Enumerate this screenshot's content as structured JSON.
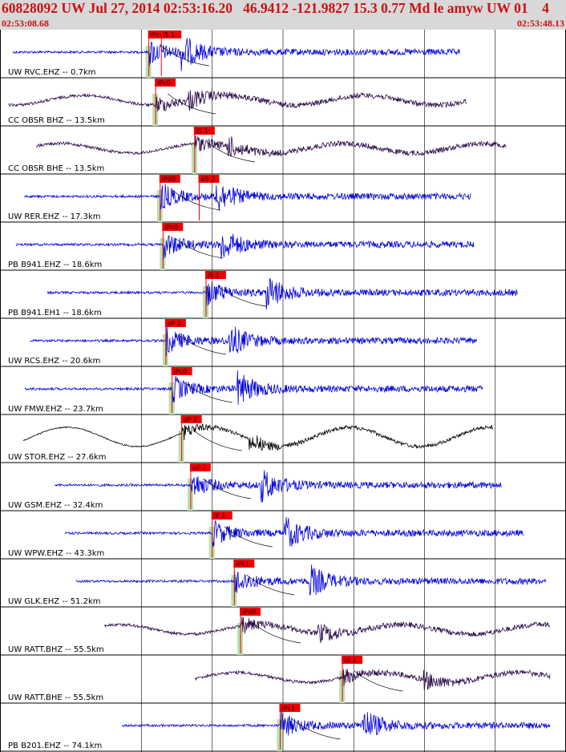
{
  "header": {
    "title": "60828092 UW Jul 27, 2014 02:53:16.20   46.9412 -121.9827 15.3 0.77 Md le amyw UW 01    4",
    "start_time": "02:53:08.68",
    "end_time": "02:53:48.13"
  },
  "colors": {
    "header_bg": "#d8d8d8",
    "header_text": "#cc1111",
    "blue_trace": "#0000dd",
    "purple_trace": "#2a0a4a",
    "black_trace": "#000000",
    "pick_flag": "#ee0000",
    "pick_window": "#b8e0b0",
    "travel_time_curve": "#000000"
  },
  "chart_data": {
    "type": "seismogram-record-section",
    "time_range": [
      "02:53:08.68",
      "02:53:48.13"
    ],
    "traces": [
      {
        "label": "UW RVC.EHZ -- 0.7km",
        "color": "blue",
        "picks": [
          {
            "label": "iPc0",
            "t": 0.263
          },
          {
            "label": "iS 1",
            "t": 0.285
          }
        ]
      },
      {
        "label": "CC OBSR BHZ -- 13.5km",
        "color": "purple",
        "picks": [
          {
            "label": "iPc0",
            "t": 0.275
          }
        ]
      },
      {
        "label": "CC OBSR BHE -- 13.5km",
        "color": "purple",
        "picks": [
          {
            "label": "iS 1",
            "t": 0.344
          }
        ]
      },
      {
        "label": "UW RER.EHZ -- 17.3km",
        "color": "blue",
        "picks": [
          {
            "label": "iPd0",
            "t": 0.283
          },
          {
            "label": "eS 2",
            "t": 0.352
          }
        ]
      },
      {
        "label": "PB B941.EHZ -- 18.6km",
        "color": "blue",
        "picks": [
          {
            "label": "iPc0",
            "t": 0.288
          }
        ]
      },
      {
        "label": "PB B941.EH1 -- 18.6km",
        "color": "blue",
        "picks": [
          {
            "label": "iS 1",
            "t": 0.364
          }
        ]
      },
      {
        "label": "UW RCS.EHZ -- 20.6km",
        "color": "blue",
        "picks": [
          {
            "label": "eP 2",
            "t": 0.293
          }
        ]
      },
      {
        "label": "UW FMW.EHZ -- 23.7km",
        "color": "blue",
        "picks": [
          {
            "label": "iPc0",
            "t": 0.304
          }
        ]
      },
      {
        "label": "UW STOR.EHZ -- 27.6km",
        "color": "black",
        "picks": [
          {
            "label": "eP 2",
            "t": 0.321
          }
        ]
      },
      {
        "label": "UW GSM.EHZ -- 32.4km",
        "color": "blue",
        "picks": [
          {
            "label": "eP 2",
            "t": 0.337
          }
        ]
      },
      {
        "label": "UW WPW.EHZ -- 43.3km",
        "color": "blue",
        "picks": [
          {
            "label": "iP 1",
            "t": 0.375
          }
        ]
      },
      {
        "label": "UW GLK.EHZ -- 51.2km",
        "color": "blue",
        "picks": [
          {
            "label": "iPc1",
            "t": 0.414
          }
        ]
      },
      {
        "label": "UW RATT.BHZ -- 55.5km",
        "color": "purple",
        "picks": [
          {
            "label": "iPd0",
            "t": 0.425
          }
        ]
      },
      {
        "label": "UW RATT.BHE -- 55.5km",
        "color": "purple",
        "picks": [
          {
            "label": "iS 1",
            "t": 0.605
          }
        ]
      },
      {
        "label": "PB B201.EHZ -- 74.1km",
        "color": "blue",
        "picks": [
          {
            "label": "iPc1",
            "t": 0.495
          }
        ]
      }
    ],
    "grid": true,
    "legend": "none"
  }
}
